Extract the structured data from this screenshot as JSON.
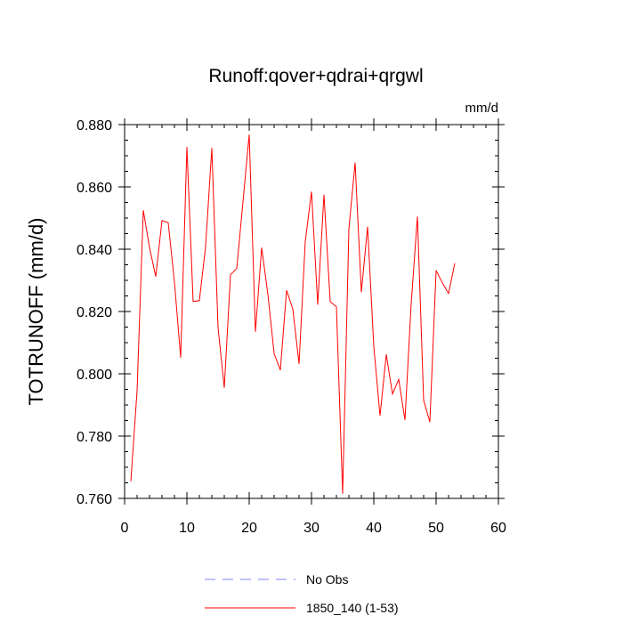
{
  "chart_data": {
    "type": "line",
    "title": "Runoff:qover+qdrai+qrgwl",
    "units": "mm/d",
    "ylabel": "TOTRUNOFF  (mm/d)",
    "xlabel": "",
    "xlim": [
      0,
      60
    ],
    "ylim": [
      0.76,
      0.88
    ],
    "xticks": [
      0,
      10,
      20,
      30,
      40,
      50,
      60
    ],
    "xtick_labels": [
      "0",
      "10",
      "20",
      "30",
      "40",
      "50",
      "60"
    ],
    "yticks": [
      0.76,
      0.78,
      0.8,
      0.82,
      0.84,
      0.86,
      0.88
    ],
    "ytick_labels": [
      "0.760",
      "0.780",
      "0.800",
      "0.820",
      "0.840",
      "0.860",
      "0.880"
    ],
    "grid": false,
    "legend_position": "bottom",
    "series": [
      {
        "name": "No Obs",
        "color": "#8080ff",
        "dash": "dashed",
        "x": [],
        "y": []
      },
      {
        "name": "1850_140 (1-53)",
        "color": "#ff0000",
        "dash": "solid",
        "x": [
          1,
          2,
          3,
          4,
          5,
          6,
          7,
          8,
          9,
          10,
          11,
          12,
          13,
          14,
          15,
          16,
          17,
          18,
          19,
          20,
          21,
          22,
          23,
          24,
          25,
          26,
          27,
          28,
          29,
          30,
          31,
          32,
          33,
          34,
          35,
          36,
          37,
          38,
          39,
          40,
          41,
          42,
          43,
          44,
          45,
          46,
          47,
          48,
          49,
          50,
          51,
          52,
          53
        ],
        "y": [
          0.7655,
          0.7945,
          0.8525,
          0.8405,
          0.8312,
          0.8492,
          0.8485,
          0.8295,
          0.8052,
          0.8728,
          0.8232,
          0.8235,
          0.8408,
          0.8725,
          0.8148,
          0.7955,
          0.8318,
          0.8338,
          0.8552,
          0.8768,
          0.8135,
          0.8405,
          0.8255,
          0.8065,
          0.8012,
          0.8268,
          0.8208,
          0.8032,
          0.8425,
          0.8585,
          0.8222,
          0.8575,
          0.8232,
          0.8215,
          0.7615,
          0.8465,
          0.8678,
          0.8262,
          0.8472,
          0.8088,
          0.7865,
          0.8062,
          0.7935,
          0.7982,
          0.7852,
          0.8225,
          0.8505,
          0.7915,
          0.7845,
          0.8332,
          0.8292,
          0.8258,
          0.8355
        ]
      }
    ]
  }
}
